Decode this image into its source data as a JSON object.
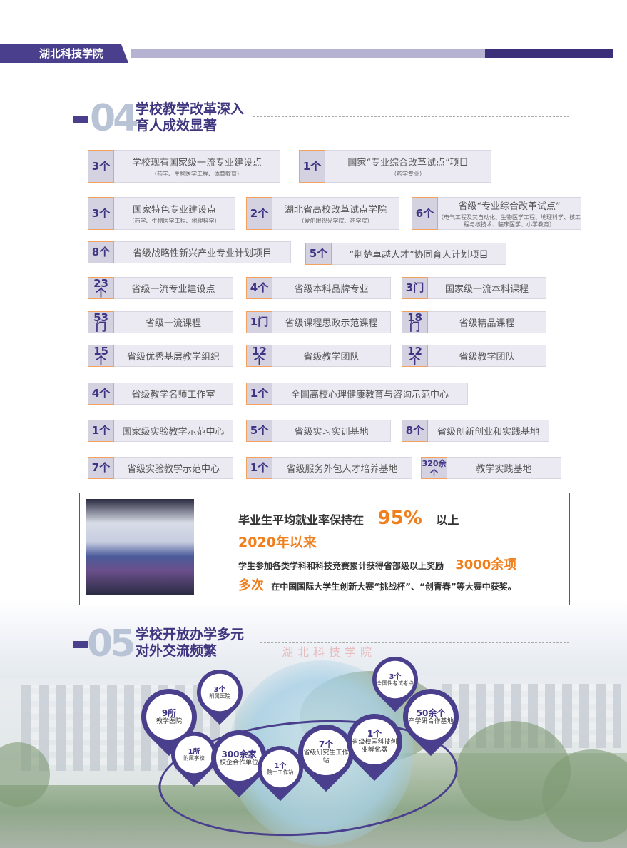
{
  "header": {
    "school": "湖北科技学院",
    "colors": {
      "primary": "#4a3f8c",
      "accent": "#f07f1e",
      "border": "#f2a15e"
    }
  },
  "section04": {
    "num": "04",
    "title_line1": "学校教学改革深入",
    "title_line2": "育人成效显著"
  },
  "stats": [
    {
      "num": "3个",
      "label": "学校现有国家级一流专业建设点",
      "sub": "（药学、生物医学工程、体育教育）"
    },
    {
      "num": "1个",
      "label": "国家“专业综合改革试点”项目",
      "sub": "（药学专业）"
    },
    {
      "num": "3个",
      "label": "国家特色专业建设点",
      "sub": "（药学、生物医学工程、地理科学）"
    },
    {
      "num": "2个",
      "label": "湖北省高校改革试点学院",
      "sub": "（爱尔眼视光学院、药学院）"
    },
    {
      "num": "6个",
      "label": "省级“专业综合改革试点”",
      "sub": "（电气工程及其自动化、生物医学工程、地理科学、核工程与核技术、临床医学、小学教育）"
    },
    {
      "num": "8个",
      "label": "省级战略性新兴产业专业计划项目",
      "sub": ""
    },
    {
      "num": "5个",
      "label": "“荆楚卓越人才”协同育人计划项目",
      "sub": ""
    },
    {
      "num": "23个",
      "label": "省级一流专业建设点",
      "sub": ""
    },
    {
      "num": "4个",
      "label": "省级本科品牌专业",
      "sub": ""
    },
    {
      "num": "3门",
      "label": "国家级一流本科课程",
      "sub": ""
    },
    {
      "num": "53门",
      "label": "省级一流课程",
      "sub": ""
    },
    {
      "num": "1门",
      "label": "省级课程思政示范课程",
      "sub": ""
    },
    {
      "num": "18门",
      "label": "省级精品课程",
      "sub": ""
    },
    {
      "num": "15个",
      "label": "省级优秀基层教学组织",
      "sub": ""
    },
    {
      "num": "12个",
      "label": "省级教学团队",
      "sub": ""
    },
    {
      "num": "12个",
      "label": "省级教学团队",
      "sub": ""
    },
    {
      "num": "4个",
      "label": "省级教学名师工作室",
      "sub": ""
    },
    {
      "num": "1个",
      "label": "全国高校心理健康教育与咨询示范中心",
      "sub": ""
    },
    {
      "num": "1个",
      "label": "国家级实验教学示范中心",
      "sub": ""
    },
    {
      "num": "5个",
      "label": "省级实习实训基地",
      "sub": ""
    },
    {
      "num": "8个",
      "label": "省级创新创业和实践基地",
      "sub": ""
    },
    {
      "num": "7个",
      "label": "省级实验教学示范中心",
      "sub": ""
    },
    {
      "num": "1个",
      "label": "省级服务外包人才培养基地",
      "sub": ""
    },
    {
      "num": "320余个",
      "label": "教学实践基地",
      "sub": ""
    }
  ],
  "employment": {
    "line1": "毕业生平均就业率保持在",
    "rate": "95%",
    "line1_tail": "以上",
    "since": "2020年以来",
    "line3": "学生参加各类学科和科技竞赛累计获得省部级以上奖励",
    "awards": "3000余项",
    "many": "多次",
    "line4": "在中国国际大学生创新大赛“挑战杯”、“创青春”等大赛中获奖。"
  },
  "section05": {
    "num": "05",
    "title_line1": "学校开放办学多元",
    "title_line2": "对外交流频繁"
  },
  "pins": [
    {
      "num": "9所",
      "label": "教学医院"
    },
    {
      "num": "3个",
      "label": "附属医院"
    },
    {
      "num": "1所",
      "label": "附属学校"
    },
    {
      "num": "300余家",
      "label": "校企合作单位"
    },
    {
      "num": "1个",
      "label": "院士工作站"
    },
    {
      "num": "7个",
      "label": "省级研究生工作站"
    },
    {
      "num": "1个",
      "label": "省级校园科技创业孵化器"
    },
    {
      "num": "3个",
      "label": "全国性考试考点"
    },
    {
      "num": "50余个",
      "label": "产学研合作基地"
    }
  ]
}
